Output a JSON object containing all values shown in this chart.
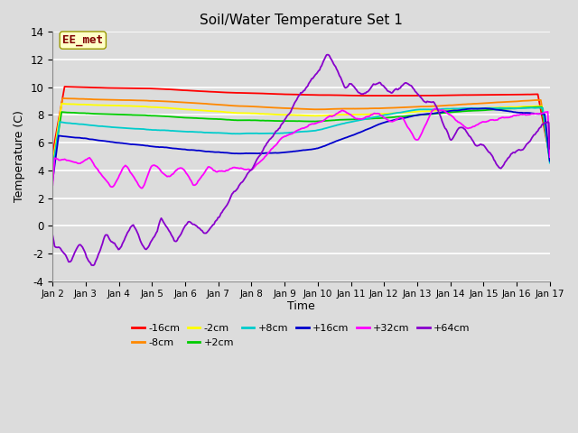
{
  "title": "Soil/Water Temperature Set 1",
  "xlabel": "Time",
  "ylabel": "Temperature (C)",
  "ylim": [
    -4,
    14
  ],
  "xlim": [
    0,
    15
  ],
  "xtick_labels": [
    "Jan 2",
    "Jan 3",
    "Jan 4",
    "Jan 5",
    "Jan 6",
    "Jan 7",
    "Jan 8",
    "Jan 9",
    "Jan 10",
    "Jan 11",
    "Jan 12",
    "Jan 13",
    "Jan 14",
    "Jan 15",
    "Jan 16",
    "Jan 17"
  ],
  "ytick_values": [
    -4,
    -2,
    0,
    2,
    4,
    6,
    8,
    10,
    12,
    14
  ],
  "bg_color": "#dcdcdc",
  "grid_color": "#ffffff",
  "annotation_text": "EE_met",
  "annotation_color": "#800000",
  "annotation_bg": "#ffffc8",
  "series": [
    {
      "label": "-16cm",
      "color": "#ff0000"
    },
    {
      "label": "-8cm",
      "color": "#ff8800"
    },
    {
      "label": "-2cm",
      "color": "#ffff00"
    },
    {
      "label": "+2cm",
      "color": "#00cc00"
    },
    {
      "label": "+8cm",
      "color": "#00cccc"
    },
    {
      "label": "+16cm",
      "color": "#0000cc"
    },
    {
      "label": "+32cm",
      "color": "#ff00ff"
    },
    {
      "label": "+64cm",
      "color": "#8800cc"
    }
  ]
}
